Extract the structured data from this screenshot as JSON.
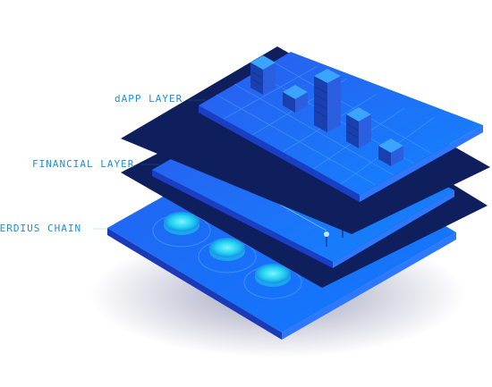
{
  "layers": {
    "dapp": {
      "label": "dAPP LAYER"
    },
    "financial": {
      "label": "FINANCIAL LAYER"
    },
    "chain": {
      "label": "HERDIUS CHAIN"
    }
  },
  "colors": {
    "label": "#1e8fd8",
    "layer_top": "#1f6cf5",
    "layer_edge": "#1640c8",
    "shadow_layer": "#0f1f5e",
    "pad": "#22d3f0"
  }
}
